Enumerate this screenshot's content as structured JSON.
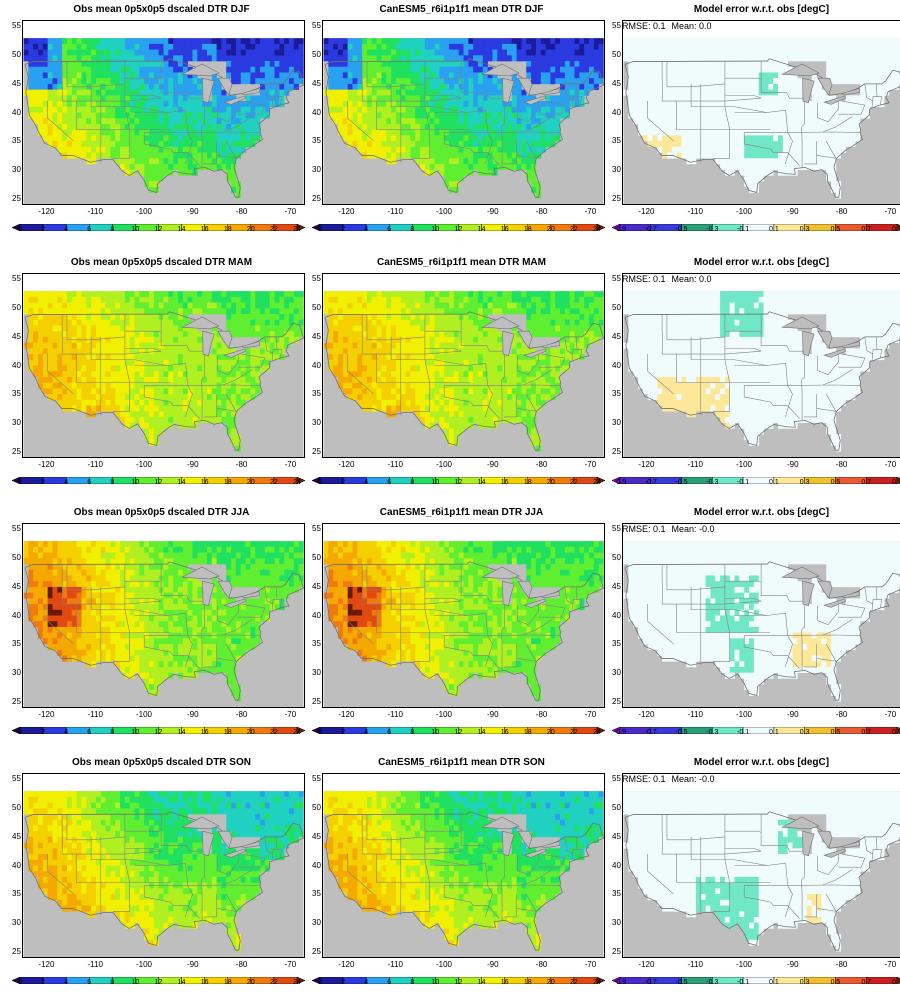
{
  "rows": [
    {
      "season": "DJF",
      "panels": [
        {
          "title": "Obs mean 0p5x0p5 dscaled DTR DJF",
          "kind": "dtr",
          "variant": "djf"
        },
        {
          "title": "CanESM5_r6i1p1f1 mean DTR DJF",
          "kind": "dtr",
          "variant": "djf"
        },
        {
          "title": "Model error w.r.t. obs [degC]",
          "kind": "err",
          "variant": "djf",
          "rmse_label": "RMSE: 0.1",
          "mean_label": "Mean: 0.0"
        }
      ]
    },
    {
      "season": "MAM",
      "panels": [
        {
          "title": "Obs mean 0p5x0p5 dscaled DTR MAM",
          "kind": "dtr",
          "variant": "mam"
        },
        {
          "title": "CanESM5_r6i1p1f1 mean DTR MAM",
          "kind": "dtr",
          "variant": "mam"
        },
        {
          "title": "Model error w.r.t. obs [degC]",
          "kind": "err",
          "variant": "mam",
          "rmse_label": "RMSE: 0.1",
          "mean_label": "Mean: 0.0"
        }
      ]
    },
    {
      "season": "JJA",
      "panels": [
        {
          "title": "Obs mean 0p5x0p5 dscaled DTR JJA",
          "kind": "dtr",
          "variant": "jja"
        },
        {
          "title": "CanESM5_r6i1p1f1 mean DTR JJA",
          "kind": "dtr",
          "variant": "jja"
        },
        {
          "title": "Model error w.r.t. obs [degC]",
          "kind": "err",
          "variant": "jja",
          "rmse_label": "RMSE: 0.1",
          "mean_label": "Mean: -0.0"
        }
      ]
    },
    {
      "season": "SON",
      "panels": [
        {
          "title": "Obs mean 0p5x0p5 dscaled DTR SON",
          "kind": "dtr",
          "variant": "son"
        },
        {
          "title": "CanESM5_r6i1p1f1 mean DTR SON",
          "kind": "dtr",
          "variant": "son"
        },
        {
          "title": "Model error w.r.t. obs [degC]",
          "kind": "err",
          "variant": "son",
          "rmse_label": "RMSE: 0.1",
          "mean_label": "Mean: -0.0"
        }
      ]
    }
  ],
  "axes": {
    "lon_ticks": [
      "-120",
      "-110",
      "-100",
      "-90",
      "-80",
      "-70"
    ],
    "lon_values": [
      -120,
      -110,
      -100,
      -90,
      -80,
      -70
    ],
    "lat_ticks": [
      "25",
      "30",
      "35",
      "40",
      "45",
      "50",
      "55"
    ],
    "lat_values": [
      25,
      30,
      35,
      40,
      45,
      50,
      55
    ],
    "lon_range": [
      -125,
      -67
    ],
    "lat_range": [
      24,
      56
    ]
  },
  "colorbars": {
    "dtr": {
      "labels": [
        "0",
        "2",
        "4",
        "6",
        "8",
        "10",
        "12",
        "14",
        "16",
        "18",
        "20",
        "22",
        "24"
      ],
      "colors": [
        "#2a004a",
        "#1a1a9a",
        "#2a3ae0",
        "#2aa0f0",
        "#20d0c0",
        "#20e060",
        "#60ee30",
        "#b0f020",
        "#f0f000",
        "#f4d000",
        "#f4a800",
        "#f07a10",
        "#e04a10",
        "#6a1a00"
      ]
    },
    "err": {
      "labels": [
        "-0.9",
        "-0.7",
        "-0.5",
        "-0.3",
        "-0.1",
        "0.1",
        "0.3",
        "0.5",
        "0.7",
        "0.9"
      ],
      "colors": [
        "#8a00c8",
        "#4a2ac8",
        "#3a3ad8",
        "#2aa07a",
        "#70e8c8",
        "#f0fcfc",
        "#fde89a",
        "#f0c030",
        "#e85a30",
        "#c82020",
        "#6a3010"
      ]
    }
  },
  "missing_color": "#bebebe"
}
